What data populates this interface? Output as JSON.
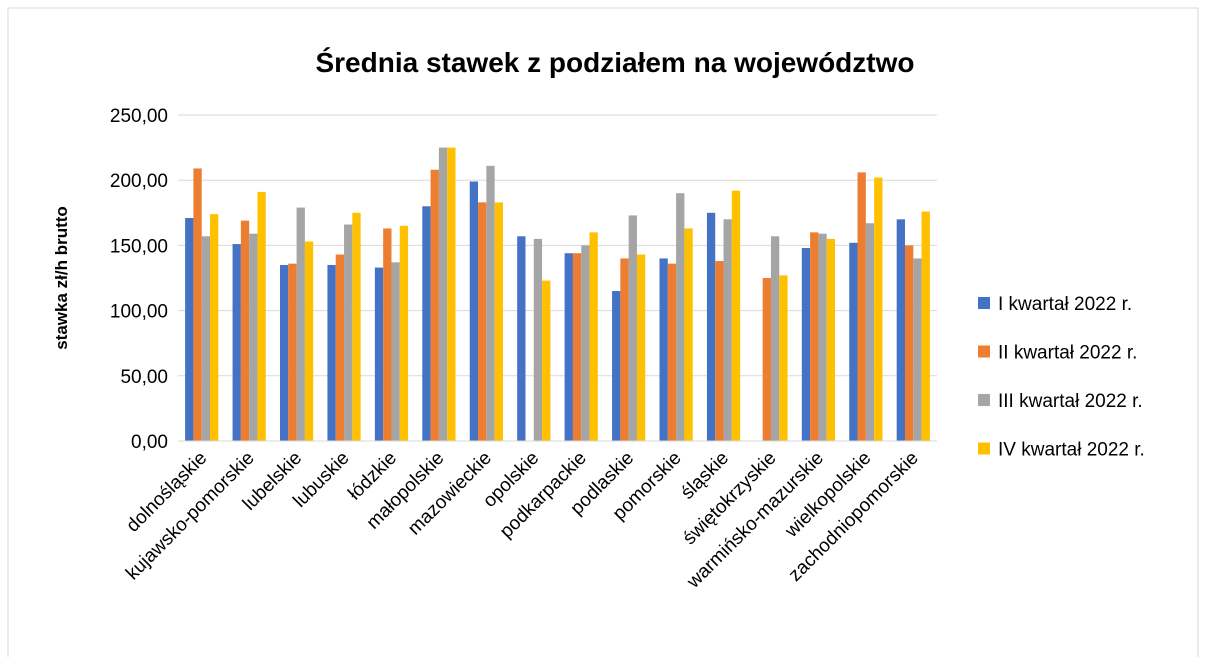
{
  "chart_data": {
    "type": "bar",
    "title": "Średnia stawek z podziałem na województwo",
    "y_label": "stawka zł/h brutto",
    "categories": [
      "dolnośląskie",
      "kujawsko-pomorskie",
      "lubelskie",
      "lubuskie",
      "łódzkie",
      "małopolskie",
      "mazowieckie",
      "opolskie",
      "podkarpackie",
      "podlaskie",
      "pomorskie",
      "śląskie",
      "świętokrzyskie",
      "warmińsko-mazurskie",
      "wielkopolskie",
      "zachodniopomorskie"
    ],
    "series": [
      {
        "name": "I kwartał 2022 r.",
        "color": "#4472c4",
        "values": [
          171,
          151,
          135,
          135,
          133,
          180,
          199,
          157,
          144,
          115,
          140,
          175,
          null,
          148,
          152,
          170
        ]
      },
      {
        "name": "II kwartał 2022 r.",
        "color": "#ed7d31",
        "values": [
          209,
          169,
          136,
          143,
          163,
          208,
          183,
          null,
          144,
          140,
          136,
          138,
          125,
          160,
          206,
          150
        ]
      },
      {
        "name": "III kwartał 2022 r.",
        "color": "#a5a5a5",
        "values": [
          157,
          159,
          179,
          166,
          137,
          225,
          211,
          155,
          150,
          173,
          190,
          170,
          157,
          159,
          167,
          140
        ]
      },
      {
        "name": "IV kwartał 2022 r.",
        "color": "#ffc000",
        "values": [
          174,
          191,
          153,
          175,
          165,
          225,
          183,
          123,
          160,
          143,
          163,
          192,
          127,
          155,
          202,
          176
        ]
      }
    ],
    "ylim": [
      0,
      250
    ],
    "yticks": [
      {
        "value": 0,
        "label": "0,00"
      },
      {
        "value": 50,
        "label": "50,00"
      },
      {
        "value": 100,
        "label": "100,00"
      },
      {
        "value": 150,
        "label": "150,00"
      },
      {
        "value": 200,
        "label": "200,00"
      },
      {
        "value": 250,
        "label": "250,00"
      }
    ],
    "grid": true,
    "legend": "right"
  }
}
